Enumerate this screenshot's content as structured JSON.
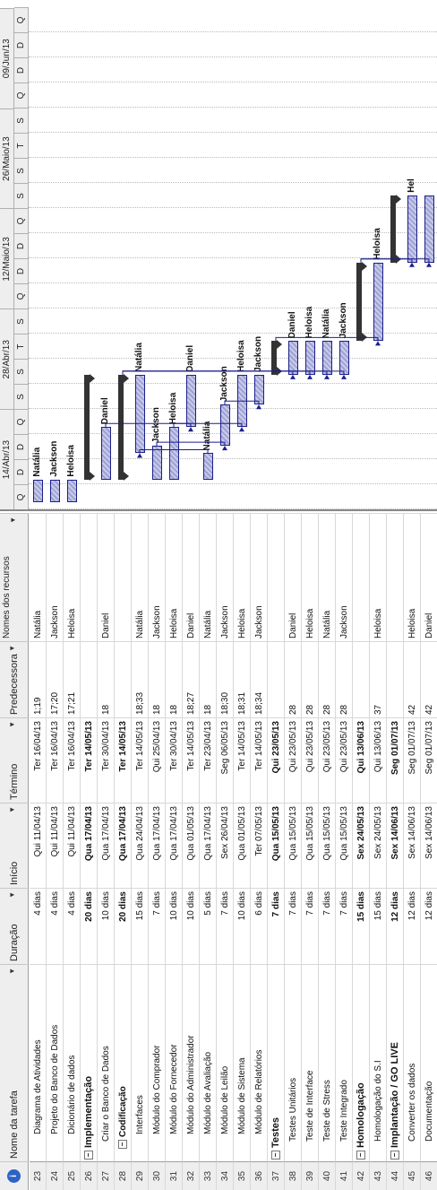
{
  "headers": {
    "info": "i",
    "name": "Nome da tarefa",
    "duration": "Duração",
    "start": "Início",
    "finish": "Término",
    "predecessors": "Predecessora",
    "resources": "Nomes dos recursos"
  },
  "timescale": {
    "weeks": [
      "14/Abr/13",
      "28/Abr/13",
      "12/Maio/13",
      "26/Maio/13",
      "09/Jun/13"
    ],
    "days": [
      "Q",
      "D",
      "D",
      "Q",
      "S",
      "S",
      "T",
      "S",
      "Q",
      "D",
      "D",
      "Q",
      "S",
      "S",
      "T",
      "S",
      "Q",
      "D",
      "D",
      "Q"
    ]
  },
  "tasks": [
    {
      "num": "23",
      "name": "Diagrama de Atividades",
      "duration": "4 dias",
      "start": "Qui 11/04/13",
      "finish": "Ter 16/04/13",
      "pred": "1;19",
      "res": "Natália",
      "level": 2,
      "summary": false
    },
    {
      "num": "24",
      "name": "Projeto do Banco de Dados",
      "duration": "4 dias",
      "start": "Qui 11/04/13",
      "finish": "Ter 16/04/13",
      "pred": "17;20",
      "res": "Jackson",
      "level": 2,
      "summary": false
    },
    {
      "num": "25",
      "name": "Dicionário de dados",
      "duration": "4 dias",
      "start": "Qui 11/04/13",
      "finish": "Ter 16/04/13",
      "pred": "17;21",
      "res": "Heloisa",
      "level": 2,
      "summary": false
    },
    {
      "num": "26",
      "name": "Implementação",
      "duration": "20 dias",
      "start": "Qua 17/04/13",
      "finish": "Ter 14/05/13",
      "pred": "",
      "res": "",
      "level": 0,
      "summary": true
    },
    {
      "num": "27",
      "name": "Criar o Banco de Dados",
      "duration": "10 dias",
      "start": "Qua 17/04/13",
      "finish": "Ter 30/04/13",
      "pred": "18",
      "res": "Daniel",
      "level": 1,
      "summary": false
    },
    {
      "num": "28",
      "name": "Codificação",
      "duration": "20 dias",
      "start": "Qua 17/04/13",
      "finish": "Ter 14/05/13",
      "pred": "",
      "res": "",
      "level": 1,
      "summary": true
    },
    {
      "num": "29",
      "name": "Interfaces",
      "duration": "15 dias",
      "start": "Qua 24/04/13",
      "finish": "Ter 14/05/13",
      "pred": "18;33",
      "res": "Natália",
      "level": 2,
      "summary": false
    },
    {
      "num": "30",
      "name": "Módulo do Comprador",
      "duration": "7 dias",
      "start": "Qua 17/04/13",
      "finish": "Qui 25/04/13",
      "pred": "18",
      "res": "Jackson",
      "level": 2,
      "summary": false
    },
    {
      "num": "31",
      "name": "Módulo do Fornecedor",
      "duration": "10 dias",
      "start": "Qua 17/04/13",
      "finish": "Ter 30/04/13",
      "pred": "18",
      "res": "Heloisa",
      "level": 2,
      "summary": false
    },
    {
      "num": "32",
      "name": "Módulo do Administrador",
      "duration": "10 dias",
      "start": "Qua 01/05/13",
      "finish": "Ter 14/05/13",
      "pred": "18;27",
      "res": "Daniel",
      "level": 2,
      "summary": false
    },
    {
      "num": "33",
      "name": "Módulo de Avaliação",
      "duration": "5 dias",
      "start": "Qua 17/04/13",
      "finish": "Ter 23/04/13",
      "pred": "18",
      "res": "Natália",
      "level": 2,
      "summary": false
    },
    {
      "num": "34",
      "name": "Módulo de Leilão",
      "duration": "7 dias",
      "start": "Sex 26/04/13",
      "finish": "Seg 06/05/13",
      "pred": "18;30",
      "res": "Jackson",
      "level": 2,
      "summary": false
    },
    {
      "num": "35",
      "name": "Módulo de Sistema",
      "duration": "10 dias",
      "start": "Qua 01/05/13",
      "finish": "Ter 14/05/13",
      "pred": "18;31",
      "res": "Heloisa",
      "level": 2,
      "summary": false
    },
    {
      "num": "36",
      "name": "Módulo de Relatórios",
      "duration": "6 dias",
      "start": "Ter 07/05/13",
      "finish": "Ter 14/05/13",
      "pred": "18;34",
      "res": "Jackson",
      "level": 2,
      "summary": false
    },
    {
      "num": "37",
      "name": "Testes",
      "duration": "7 dias",
      "start": "Qua 15/05/13",
      "finish": "Qui 23/05/13",
      "pred": "",
      "res": "",
      "level": 0,
      "summary": true
    },
    {
      "num": "38",
      "name": "Testes Unitários",
      "duration": "7 dias",
      "start": "Qua 15/05/13",
      "finish": "Qui 23/05/13",
      "pred": "28",
      "res": "Daniel",
      "level": 1,
      "summary": false
    },
    {
      "num": "39",
      "name": "Teste de Interface",
      "duration": "7 dias",
      "start": "Qua 15/05/13",
      "finish": "Qui 23/05/13",
      "pred": "28",
      "res": "Heloisa",
      "level": 1,
      "summary": false
    },
    {
      "num": "40",
      "name": "Teste de Stress",
      "duration": "7 dias",
      "start": "Qua 15/05/13",
      "finish": "Qui 23/05/13",
      "pred": "28",
      "res": "Natália",
      "level": 1,
      "summary": false
    },
    {
      "num": "41",
      "name": "Teste Integrado",
      "duration": "7 dias",
      "start": "Qua 15/05/13",
      "finish": "Qui 23/05/13",
      "pred": "28",
      "res": "Jackson",
      "level": 1,
      "summary": false
    },
    {
      "num": "42",
      "name": "Homologação",
      "duration": "15 dias",
      "start": "Sex 24/05/13",
      "finish": "Qui 13/06/13",
      "pred": "",
      "res": "",
      "level": 0,
      "summary": true
    },
    {
      "num": "43",
      "name": "Homologação do S.I",
      "duration": "15 dias",
      "start": "Sex 24/05/13",
      "finish": "Qui 13/06/13",
      "pred": "37",
      "res": "Heloisa",
      "level": 1,
      "summary": false
    },
    {
      "num": "44",
      "name": "Implantação / GO LIVE",
      "duration": "12 dias",
      "start": "Sex 14/06/13",
      "finish": "Seg 01/07/13",
      "pred": "",
      "res": "",
      "level": 0,
      "summary": true
    },
    {
      "num": "45",
      "name": "Converter os dados",
      "duration": "12 dias",
      "start": "Sex 14/06/13",
      "finish": "Seg 01/07/13",
      "pred": "42",
      "res": "Heloisa",
      "level": 1,
      "summary": false
    },
    {
      "num": "46",
      "name": "Documentação",
      "duration": "12 dias",
      "start": "Sex 14/06/13",
      "finish": "Seg 01/07/13",
      "pred": "42",
      "res": "Daniel",
      "level": 1,
      "summary": false
    }
  ],
  "gantt_labels": {
    "23": "Natália",
    "24": "Jackson",
    "25": "Heloisa",
    "27": "Daniel",
    "29": "Natália",
    "30": "Jackson",
    "31": "Heloisa",
    "32": "Daniel",
    "33": "Natália",
    "34": "Jackson",
    "35": "Heloisa",
    "36": "Jackson",
    "38": "Daniel",
    "39": "Heloisa",
    "40": "Natália",
    "41": "Jackson",
    "43": "Heloisa",
    "45": "Hel"
  },
  "colors": {
    "bar_fill": "#9ea2d4",
    "bar_border": "#1b1f8a",
    "summary": "#333333",
    "link": "#1b1f8a",
    "header_bg": "#eeeeee"
  }
}
